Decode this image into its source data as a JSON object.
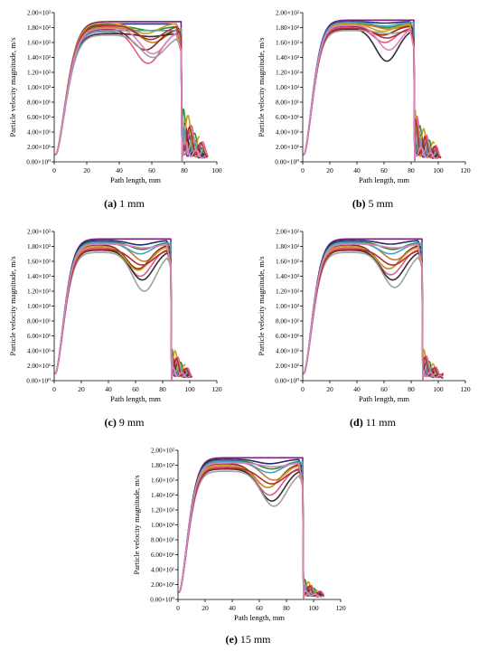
{
  "chart_data": [
    {
      "type": "line",
      "id": "a",
      "caption_letter": "(a)",
      "caption_text": " 1 mm",
      "xlabel": "Path length, mm",
      "ylabel": "Particle velocity magnitude, m/s",
      "xlim": [
        0,
        100
      ],
      "xticks": [
        "0",
        "20",
        "40",
        "60",
        "80",
        "100"
      ],
      "xtick_values": [
        0,
        20,
        40,
        60,
        80,
        100
      ],
      "ylim": [
        0,
        200
      ],
      "yticks": [
        "0.00×10⁰",
        "2.00×10¹",
        "4.00×10¹",
        "6.00×10¹",
        "8.00×10¹",
        "1.00×10²",
        "1.20×10²",
        "1.40×10²",
        "1.60×10²",
        "1.80×10²",
        "2.00×10²"
      ],
      "ytick_values": [
        0,
        20,
        40,
        60,
        80,
        100,
        120,
        140,
        160,
        180,
        200
      ],
      "grid": false,
      "drop_x": 78,
      "tail_end": 95,
      "tail_peak": 90,
      "series": [
        {
          "plateau": 188,
          "dip": 188
        },
        {
          "plateau": 185,
          "dip": 185
        },
        {
          "plateau": 182,
          "dip": 176
        },
        {
          "plateau": 180,
          "dip": 160
        },
        {
          "plateau": 178,
          "dip": 150
        },
        {
          "plateau": 175,
          "dip": 132
        },
        {
          "plateau": 172,
          "dip": 168
        },
        {
          "plateau": 170,
          "dip": 140
        },
        {
          "plateau": 186,
          "dip": 172
        },
        {
          "plateau": 176,
          "dip": 176
        },
        {
          "plateau": 183,
          "dip": 164
        },
        {
          "plateau": 179,
          "dip": 145
        }
      ]
    },
    {
      "type": "line",
      "id": "b",
      "caption_letter": "(b)",
      "caption_text": " 5 mm",
      "xlabel": "Path length, mm",
      "ylabel": "Particle velocity magnitude, m/s",
      "xlim": [
        0,
        120
      ],
      "xticks": [
        "0",
        "20",
        "40",
        "60",
        "80",
        "100",
        "120"
      ],
      "xtick_values": [
        0,
        20,
        40,
        60,
        80,
        100,
        120
      ],
      "ylim": [
        0,
        200
      ],
      "yticks": [
        "0.00×10⁰",
        "2.00×10¹",
        "4.00×10¹",
        "6.00×10¹",
        "8.00×10¹",
        "1.00×10²",
        "1.20×10²",
        "1.40×10²",
        "1.60×10²",
        "1.80×10²",
        "2.00×10²"
      ],
      "ytick_values": [
        0,
        20,
        40,
        60,
        80,
        100,
        120,
        140,
        160,
        180,
        200
      ],
      "grid": false,
      "drop_x": 82,
      "tail_end": 102,
      "tail_peak": 75,
      "series": [
        {
          "plateau": 190,
          "dip": 190
        },
        {
          "plateau": 188,
          "dip": 186
        },
        {
          "plateau": 186,
          "dip": 180
        },
        {
          "plateau": 184,
          "dip": 178
        },
        {
          "plateau": 182,
          "dip": 170
        },
        {
          "plateau": 180,
          "dip": 160
        },
        {
          "plateau": 178,
          "dip": 135
        },
        {
          "plateau": 176,
          "dip": 172
        },
        {
          "plateau": 185,
          "dip": 175
        },
        {
          "plateau": 187,
          "dip": 182
        },
        {
          "plateau": 179,
          "dip": 166
        },
        {
          "plateau": 183,
          "dip": 150
        }
      ]
    },
    {
      "type": "line",
      "id": "c",
      "caption_letter": "(c)",
      "caption_text": " 9 mm",
      "xlabel": "Path length, mm",
      "ylabel": "Particle velocity magnitude, m/s",
      "xlim": [
        0,
        120
      ],
      "xticks": [
        "0",
        "20",
        "40",
        "60",
        "80",
        "100",
        "120"
      ],
      "xtick_values": [
        0,
        20,
        40,
        60,
        80,
        100,
        120
      ],
      "ylim": [
        0,
        200
      ],
      "yticks": [
        "0.00×10⁰",
        "2.00×10¹",
        "4.00×10¹",
        "6.00×10¹",
        "8.00×10¹",
        "1.00×10²",
        "1.20×10²",
        "1.40×10²",
        "1.60×10²",
        "1.80×10²",
        "2.00×10²"
      ],
      "ytick_values": [
        0,
        20,
        40,
        60,
        80,
        100,
        120,
        140,
        160,
        180,
        200
      ],
      "grid": false,
      "drop_x": 86,
      "tail_end": 102,
      "tail_peak": 52,
      "series": [
        {
          "plateau": 190,
          "dip": 190
        },
        {
          "plateau": 188,
          "dip": 182
        },
        {
          "plateau": 186,
          "dip": 176
        },
        {
          "plateau": 184,
          "dip": 160
        },
        {
          "plateau": 182,
          "dip": 150
        },
        {
          "plateau": 178,
          "dip": 140
        },
        {
          "plateau": 175,
          "dip": 135
        },
        {
          "plateau": 172,
          "dip": 120
        },
        {
          "plateau": 180,
          "dip": 148
        },
        {
          "plateau": 185,
          "dip": 170
        },
        {
          "plateau": 176,
          "dip": 155
        },
        {
          "plateau": 183,
          "dip": 178
        }
      ]
    },
    {
      "type": "line",
      "id": "d",
      "caption_letter": "(d)",
      "caption_text": " 11 mm",
      "xlabel": "Path length, mm",
      "ylabel": "Particle velocity magnitude, m/s",
      "xlim": [
        0,
        120
      ],
      "xticks": [
        "0",
        "20",
        "40",
        "60",
        "80",
        "100",
        "120"
      ],
      "xtick_values": [
        0,
        20,
        40,
        60,
        80,
        100,
        120
      ],
      "ylim": [
        0,
        200
      ],
      "yticks": [
        "0.00×10⁰",
        "2.00×10¹",
        "4.00×10¹",
        "6.00×10¹",
        "8.00×10¹",
        "1.00×10²",
        "1.20×10²",
        "1.40×10²",
        "1.60×10²",
        "1.80×10²",
        "2.00×10²"
      ],
      "ytick_values": [
        0,
        20,
        40,
        60,
        80,
        100,
        120,
        140,
        160,
        180,
        200
      ],
      "grid": false,
      "drop_x": 88,
      "tail_end": 104,
      "tail_peak": 45,
      "series": [
        {
          "plateau": 190,
          "dip": 190
        },
        {
          "plateau": 188,
          "dip": 183
        },
        {
          "plateau": 186,
          "dip": 176
        },
        {
          "plateau": 184,
          "dip": 162
        },
        {
          "plateau": 182,
          "dip": 150
        },
        {
          "plateau": 178,
          "dip": 142
        },
        {
          "plateau": 175,
          "dip": 135
        },
        {
          "plateau": 172,
          "dip": 125
        },
        {
          "plateau": 180,
          "dip": 150
        },
        {
          "plateau": 185,
          "dip": 170
        },
        {
          "plateau": 176,
          "dip": 155
        },
        {
          "plateau": 183,
          "dip": 178
        }
      ]
    },
    {
      "type": "line",
      "id": "e",
      "caption_letter": "(e)",
      "caption_text": " 15 mm",
      "xlabel": "Path length, mm",
      "ylabel": "Particle velocity magnitude, m/s",
      "xlim": [
        0,
        120
      ],
      "xticks": [
        "0",
        "20",
        "40",
        "60",
        "80",
        "100",
        "120"
      ],
      "xtick_values": [
        0,
        20,
        40,
        60,
        80,
        100,
        120
      ],
      "ylim": [
        0,
        200
      ],
      "yticks": [
        "0.00×10⁰",
        "2.00×10¹",
        "4.00×10¹",
        "6.00×10¹",
        "8.00×10¹",
        "1.00×10²",
        "1.20×10²",
        "1.40×10²",
        "1.60×10²",
        "1.80×10²",
        "2.00×10²"
      ],
      "ytick_values": [
        0,
        20,
        40,
        60,
        80,
        100,
        120,
        140,
        160,
        180,
        200
      ],
      "grid": false,
      "drop_x": 92,
      "tail_end": 108,
      "tail_peak": 32,
      "series": [
        {
          "plateau": 190,
          "dip": 190
        },
        {
          "plateau": 188,
          "dip": 182
        },
        {
          "plateau": 186,
          "dip": 175
        },
        {
          "plateau": 184,
          "dip": 160
        },
        {
          "plateau": 182,
          "dip": 150
        },
        {
          "plateau": 178,
          "dip": 140
        },
        {
          "plateau": 175,
          "dip": 132
        },
        {
          "plateau": 172,
          "dip": 125
        },
        {
          "plateau": 180,
          "dip": 150
        },
        {
          "plateau": 185,
          "dip": 170
        },
        {
          "plateau": 176,
          "dip": 155
        },
        {
          "plateau": 183,
          "dip": 178
        }
      ]
    }
  ],
  "series_colors": [
    "#7a1f7a",
    "#1f2f6b",
    "#2f8a2f",
    "#c87a30",
    "#8a2a1a",
    "#e05a8a",
    "#303030",
    "#a0a0a0",
    "#c8a020",
    "#4aa0c8",
    "#b03030",
    "#e080c0"
  ]
}
